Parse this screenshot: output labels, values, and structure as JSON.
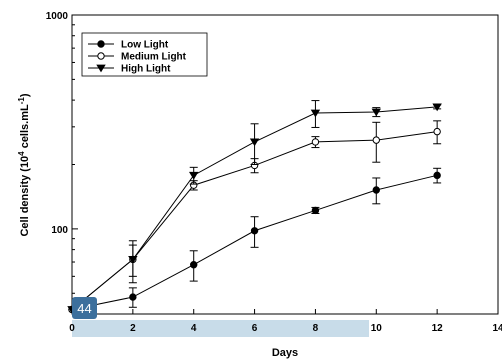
{
  "chart_data": {
    "type": "line",
    "xlabel": "Days",
    "ylabel": "Cell density (10<sup>4</sup> cells.mL<sup>-1</sup>)",
    "ylabel_parts": [
      "Cell density (10",
      "4",
      " cells.mL",
      "-1",
      ")"
    ],
    "xlim": [
      0,
      14
    ],
    "ylim": [
      40,
      1000
    ],
    "yscale": "log",
    "x_ticks": [
      "0",
      "2",
      "4",
      "6",
      "8",
      "10",
      "12",
      "14"
    ],
    "y_ticks": [
      "100",
      "1000"
    ],
    "legend_position": "top-left",
    "grid": false,
    "x": [
      0,
      2,
      4,
      6,
      8,
      10,
      12
    ],
    "series": [
      {
        "name": "Low Light",
        "marker": "filled-circle",
        "color": "#000000",
        "values": [
          42,
          48,
          68,
          98,
          122,
          152,
          178
        ],
        "errors": [
          3,
          5,
          11,
          16,
          4,
          21,
          14
        ]
      },
      {
        "name": "Medium Light",
        "marker": "open-circle",
        "color": "#000000",
        "values": [
          42,
          72,
          160,
          198,
          255,
          260,
          285
        ],
        "errors": [
          3,
          12,
          8,
          15,
          15,
          55,
          35
        ]
      },
      {
        "name": "High Light",
        "marker": "filled-triangle-down",
        "color": "#000000",
        "values": [
          42,
          72,
          178,
          255,
          348,
          352,
          372
        ],
        "errors": [
          3,
          16,
          16,
          55,
          50,
          17,
          8
        ]
      }
    ]
  },
  "badge": {
    "text": "44",
    "color": "#3c6f9c"
  },
  "highlight": {
    "color": "#c8dce9"
  }
}
